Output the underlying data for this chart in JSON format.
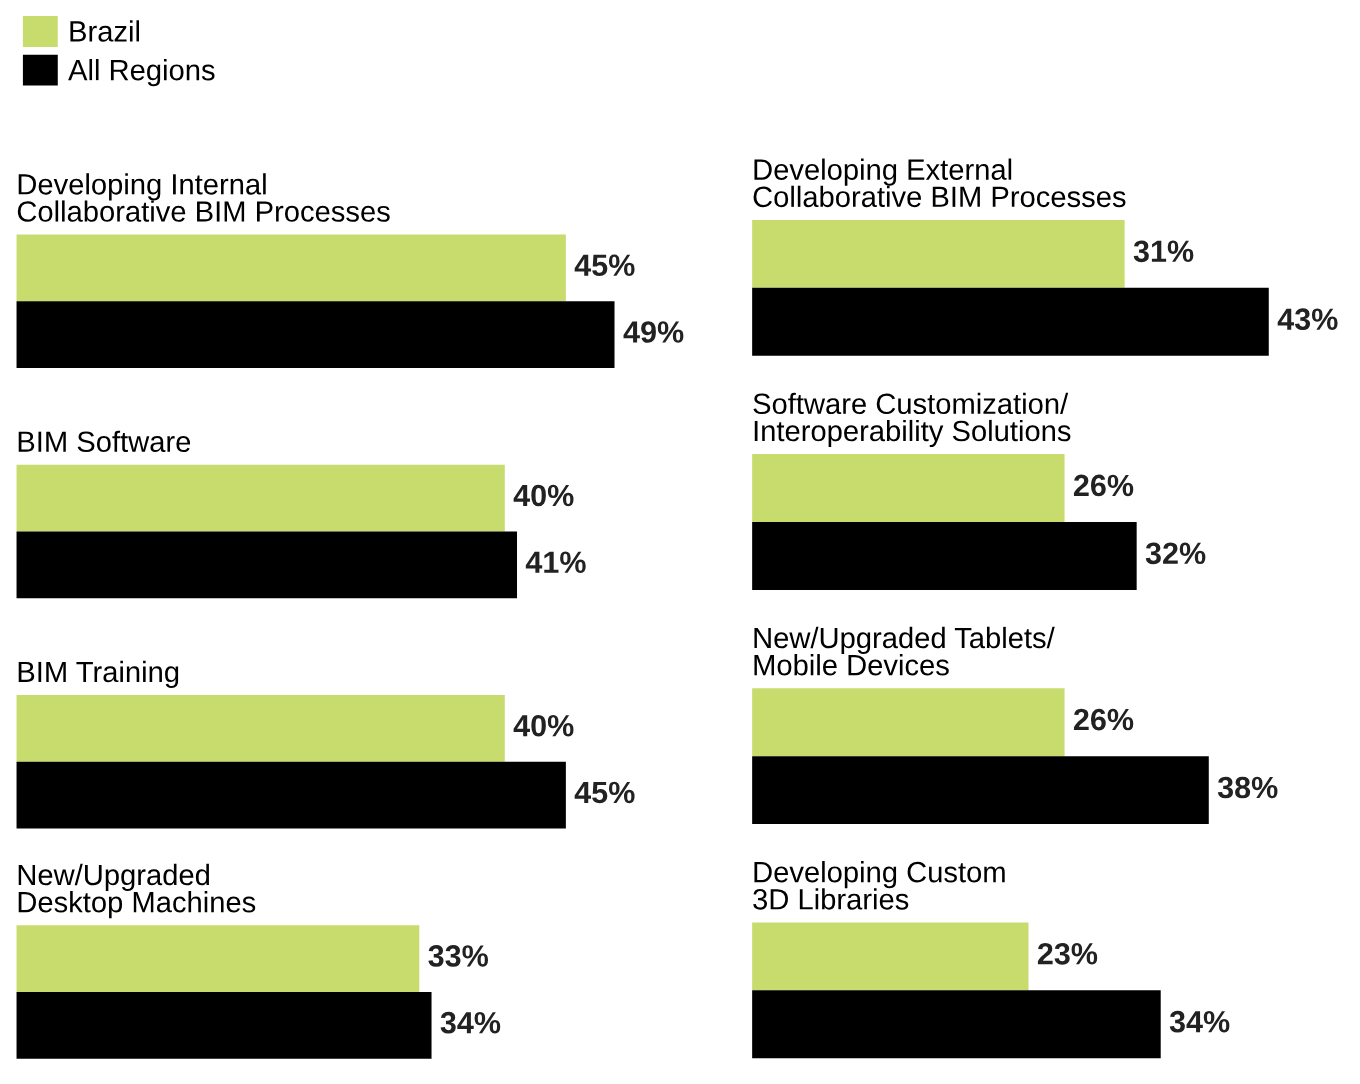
{
  "chart_data": [
    {
      "type": "bar",
      "orientation": "horizontal",
      "categories": [
        "Developing Internal\nCollaborative BIM Processes",
        "BIM Software",
        "BIM Training",
        "New/Upgraded\nDesktop Machines"
      ],
      "series": [
        {
          "name": "Brazil",
          "color": "#c8dc6e",
          "values": [
            45,
            40,
            40,
            33
          ],
          "value_labels": [
            "45%",
            "40%",
            "40%",
            "33%"
          ]
        },
        {
          "name": "All Regions",
          "color": "#000000",
          "values": [
            49,
            41,
            45,
            34
          ],
          "value_labels": [
            "49%",
            "41%",
            "45%",
            "34%"
          ]
        }
      ],
      "legend": "top left"
    },
    {
      "type": "bar",
      "orientation": "horizontal",
      "categories": [
        "Developing External\nCollaborative BIM Processes",
        "Software Customization/\nInteroperability Solutions",
        "New/Upgraded Tablets/\nMobile Devices",
        "Developing Custom\n3D Libraries"
      ],
      "series": [
        {
          "color": "#c8dc6e",
          "values": [
            31,
            26,
            26,
            23
          ],
          "value_labels": [
            "31%",
            "26%",
            "26%",
            "23%"
          ]
        },
        {
          "color": "#000000",
          "values": [
            43,
            32,
            38,
            34
          ],
          "value_labels": [
            "43%",
            "32%",
            "38%",
            "34%"
          ]
        }
      ],
      "legend": false
    }
  ]
}
